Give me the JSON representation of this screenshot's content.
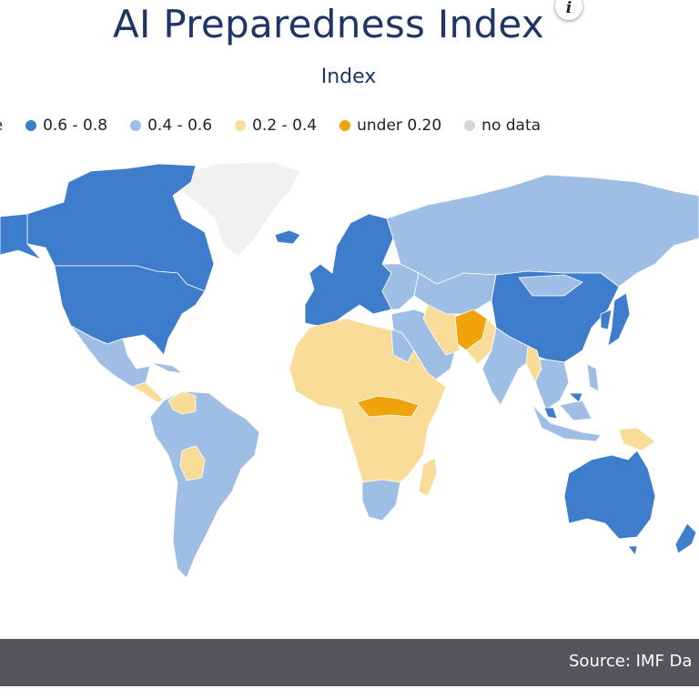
{
  "header": {
    "title": "AI Preparedness Index",
    "subtitle": "Index",
    "info_icon": "i"
  },
  "legend": [
    {
      "label": "re",
      "color": null
    },
    {
      "label": "0.6 - 0.8",
      "color": "#3d7dcc"
    },
    {
      "label": "0.4 - 0.6",
      "color": "#9fbee6"
    },
    {
      "label": "0.2 - 0.4",
      "color": "#f9dc97"
    },
    {
      "label": "under 0.20",
      "color": "#f0a30a"
    },
    {
      "label": "no data",
      "color": "#d6d6da"
    }
  ],
  "colors": {
    "no_data_fill": "#f1f1f2",
    "title": "#1d3664",
    "footer_bg": "#55565a"
  },
  "footer": {
    "source": "Source: IMF Da"
  }
}
